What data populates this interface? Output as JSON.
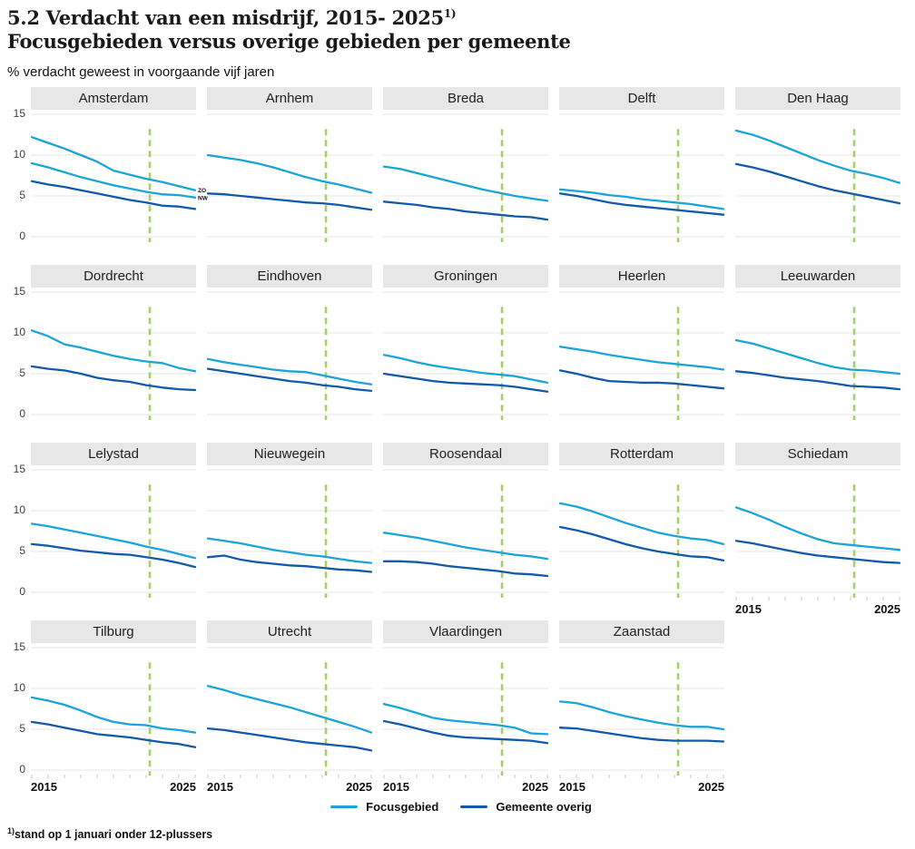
{
  "title": {
    "line1": "5.2 Verdacht van een misdrijf, 2015- 2025",
    "sup": "1)",
    "line2": "Focusgebieden versus overige gebieden per gemeente"
  },
  "subtitle": "% verdacht geweest in voorgaande vijf jaren",
  "footnote": {
    "sup": "1)",
    "text": "stand op 1 januari onder 12-plussers"
  },
  "chart_data": {
    "type": "line",
    "title": "5.2 Verdacht van een misdrijf, 2015- 2025 — Focusgebieden versus overige gebieden per gemeente",
    "ylabel": "% verdacht geweest in voorgaande vijf jaren",
    "x": [
      2015,
      2016,
      2017,
      2018,
      2019,
      2020,
      2021,
      2022,
      2023,
      2024,
      2025
    ],
    "x_tick_labels": [
      "2015",
      "2025"
    ],
    "yticks": [
      "15",
      "10",
      "5",
      "0"
    ],
    "ylim": [
      0,
      15
    ],
    "grid": true,
    "legend_position": "bottom",
    "vline": {
      "x": 2022,
      "x_fraction": 0.72,
      "style": "dashed",
      "top_value": 13.2
    },
    "colors": {
      "focus": "#1aa4d9",
      "overig": "#1359a9",
      "vline": "#a5cf6b",
      "grid": "#e4e4e4",
      "tick": "#c4c4c4",
      "header_bg": "#e7e7e7"
    },
    "legend": [
      {
        "label": "Focusgebied",
        "type": "focus"
      },
      {
        "label": "Gemeente overig",
        "type": "overig"
      }
    ],
    "panels": [
      {
        "name": "Amsterdam",
        "series": [
          {
            "label": "ZO",
            "type": "focus",
            "values": [
              12.2,
              11.5,
              10.8,
              10.0,
              9.2,
              8.1,
              7.6,
              7.1,
              6.7,
              6.2,
              5.7
            ]
          },
          {
            "label": "NW",
            "type": "focus",
            "values": [
              9.0,
              8.5,
              7.9,
              7.3,
              6.8,
              6.3,
              5.9,
              5.5,
              5.2,
              5.1,
              4.8
            ]
          },
          {
            "label": "",
            "type": "overig",
            "values": [
              6.8,
              6.4,
              6.1,
              5.7,
              5.3,
              4.9,
              4.5,
              4.2,
              3.8,
              3.7,
              3.4
            ]
          }
        ]
      },
      {
        "name": "Arnhem",
        "series": [
          {
            "label": "",
            "type": "focus",
            "values": [
              10.0,
              9.7,
              9.4,
              9.0,
              8.5,
              7.9,
              7.3,
              6.8,
              6.4,
              5.9,
              5.4
            ]
          },
          {
            "label": "",
            "type": "overig",
            "values": [
              5.3,
              5.2,
              5.0,
              4.8,
              4.6,
              4.4,
              4.2,
              4.1,
              3.9,
              3.6,
              3.3
            ]
          }
        ]
      },
      {
        "name": "Breda",
        "series": [
          {
            "label": "",
            "type": "focus",
            "values": [
              8.6,
              8.3,
              7.8,
              7.3,
              6.8,
              6.3,
              5.8,
              5.4,
              5.0,
              4.7,
              4.4
            ]
          },
          {
            "label": "",
            "type": "overig",
            "values": [
              4.3,
              4.1,
              3.9,
              3.6,
              3.4,
              3.1,
              2.9,
              2.7,
              2.5,
              2.4,
              2.1
            ]
          }
        ]
      },
      {
        "name": "Delft",
        "series": [
          {
            "label": "",
            "type": "focus",
            "values": [
              5.8,
              5.6,
              5.4,
              5.1,
              4.9,
              4.6,
              4.4,
              4.2,
              4.0,
              3.7,
              3.4
            ]
          },
          {
            "label": "",
            "type": "overig",
            "values": [
              5.3,
              5.0,
              4.6,
              4.2,
              3.9,
              3.7,
              3.5,
              3.3,
              3.1,
              2.9,
              2.7
            ]
          }
        ]
      },
      {
        "name": "Den Haag",
        "series": [
          {
            "label": "",
            "type": "focus",
            "values": [
              13.0,
              12.5,
              11.8,
              11.0,
              10.2,
              9.4,
              8.7,
              8.1,
              7.7,
              7.2,
              6.6
            ]
          },
          {
            "label": "",
            "type": "overig",
            "values": [
              8.9,
              8.5,
              8.0,
              7.4,
              6.8,
              6.2,
              5.7,
              5.3,
              4.9,
              4.5,
              4.1
            ]
          }
        ]
      },
      {
        "name": "Dordrecht",
        "series": [
          {
            "label": "",
            "type": "focus",
            "values": [
              10.3,
              9.6,
              8.6,
              8.2,
              7.7,
              7.2,
              6.8,
              6.5,
              6.3,
              5.7,
              5.3
            ]
          },
          {
            "label": "",
            "type": "overig",
            "values": [
              5.9,
              5.6,
              5.4,
              5.0,
              4.5,
              4.2,
              4.0,
              3.6,
              3.3,
              3.1,
              3.0
            ]
          }
        ]
      },
      {
        "name": "Eindhoven",
        "series": [
          {
            "label": "",
            "type": "focus",
            "values": [
              6.8,
              6.4,
              6.1,
              5.8,
              5.5,
              5.3,
              5.2,
              4.8,
              4.4,
              4.0,
              3.7
            ]
          },
          {
            "label": "",
            "type": "overig",
            "values": [
              5.6,
              5.3,
              5.0,
              4.7,
              4.4,
              4.1,
              3.9,
              3.6,
              3.4,
              3.1,
              2.9
            ]
          }
        ]
      },
      {
        "name": "Groningen",
        "series": [
          {
            "label": "",
            "type": "focus",
            "values": [
              7.3,
              6.9,
              6.4,
              6.0,
              5.7,
              5.4,
              5.1,
              4.9,
              4.7,
              4.3,
              3.9
            ]
          },
          {
            "label": "",
            "type": "overig",
            "values": [
              5.0,
              4.7,
              4.4,
              4.1,
              3.9,
              3.8,
              3.7,
              3.6,
              3.4,
              3.1,
              2.8
            ]
          }
        ]
      },
      {
        "name": "Heerlen",
        "series": [
          {
            "label": "",
            "type": "focus",
            "values": [
              8.3,
              8.0,
              7.7,
              7.3,
              7.0,
              6.7,
              6.4,
              6.2,
              6.0,
              5.8,
              5.5
            ]
          },
          {
            "label": "",
            "type": "overig",
            "values": [
              5.4,
              5.0,
              4.5,
              4.1,
              4.0,
              3.9,
              3.9,
              3.8,
              3.6,
              3.4,
              3.2
            ]
          }
        ]
      },
      {
        "name": "Leeuwarden",
        "series": [
          {
            "label": "",
            "type": "focus",
            "values": [
              9.1,
              8.7,
              8.1,
              7.5,
              6.9,
              6.3,
              5.8,
              5.5,
              5.4,
              5.2,
              5.0
            ]
          },
          {
            "label": "",
            "type": "overig",
            "values": [
              5.3,
              5.1,
              4.8,
              4.5,
              4.3,
              4.1,
              3.8,
              3.5,
              3.4,
              3.3,
              3.1
            ]
          }
        ]
      },
      {
        "name": "Lelystad",
        "series": [
          {
            "label": "",
            "type": "focus",
            "values": [
              8.4,
              8.1,
              7.7,
              7.3,
              6.9,
              6.5,
              6.1,
              5.6,
              5.2,
              4.7,
              4.2
            ]
          },
          {
            "label": "",
            "type": "overig",
            "values": [
              5.9,
              5.7,
              5.4,
              5.1,
              4.9,
              4.7,
              4.6,
              4.3,
              4.0,
              3.6,
              3.1
            ]
          }
        ]
      },
      {
        "name": "Nieuwegein",
        "series": [
          {
            "label": "",
            "type": "focus",
            "values": [
              6.6,
              6.3,
              6.0,
              5.6,
              5.2,
              4.9,
              4.6,
              4.4,
              4.1,
              3.8,
              3.6
            ]
          },
          {
            "label": "",
            "type": "overig",
            "values": [
              4.3,
              4.5,
              4.0,
              3.7,
              3.5,
              3.3,
              3.2,
              3.0,
              2.8,
              2.7,
              2.5
            ]
          }
        ]
      },
      {
        "name": "Roosendaal",
        "series": [
          {
            "label": "",
            "type": "focus",
            "values": [
              7.3,
              7.0,
              6.7,
              6.3,
              5.9,
              5.5,
              5.2,
              4.9,
              4.6,
              4.4,
              4.1
            ]
          },
          {
            "label": "",
            "type": "overig",
            "values": [
              3.8,
              3.8,
              3.7,
              3.5,
              3.2,
              3.0,
              2.8,
              2.6,
              2.3,
              2.2,
              2.0
            ]
          }
        ]
      },
      {
        "name": "Rotterdam",
        "series": [
          {
            "label": "",
            "type": "focus",
            "values": [
              10.9,
              10.5,
              9.9,
              9.2,
              8.5,
              7.9,
              7.3,
              6.9,
              6.6,
              6.4,
              5.9
            ]
          },
          {
            "label": "",
            "type": "overig",
            "values": [
              8.0,
              7.6,
              7.1,
              6.5,
              5.9,
              5.4,
              5.0,
              4.7,
              4.4,
              4.3,
              3.9
            ]
          }
        ]
      },
      {
        "name": "Schiedam",
        "show_x_axis": true,
        "series": [
          {
            "label": "",
            "type": "focus",
            "values": [
              10.4,
              9.7,
              8.9,
              8.0,
              7.2,
              6.5,
              6.0,
              5.8,
              5.6,
              5.4,
              5.2
            ]
          },
          {
            "label": "",
            "type": "overig",
            "values": [
              6.3,
              6.0,
              5.6,
              5.2,
              4.8,
              4.5,
              4.3,
              4.1,
              3.9,
              3.7,
              3.6
            ]
          }
        ]
      },
      {
        "name": "Tilburg",
        "show_x_axis": true,
        "series": [
          {
            "label": "",
            "type": "focus",
            "values": [
              8.9,
              8.5,
              8.0,
              7.3,
              6.5,
              5.9,
              5.6,
              5.5,
              5.1,
              4.9,
              4.6
            ]
          },
          {
            "label": "",
            "type": "overig",
            "values": [
              5.9,
              5.6,
              5.2,
              4.8,
              4.4,
              4.2,
              4.0,
              3.7,
              3.4,
              3.2,
              2.8
            ]
          }
        ]
      },
      {
        "name": "Utrecht",
        "show_x_axis": true,
        "series": [
          {
            "label": "",
            "type": "focus",
            "values": [
              10.3,
              9.8,
              9.2,
              8.7,
              8.2,
              7.7,
              7.1,
              6.5,
              5.9,
              5.3,
              4.6
            ]
          },
          {
            "label": "",
            "type": "overig",
            "values": [
              5.1,
              4.9,
              4.6,
              4.3,
              4.0,
              3.7,
              3.4,
              3.2,
              3.0,
              2.8,
              2.4
            ]
          }
        ]
      },
      {
        "name": "Vlaardingen",
        "show_x_axis": true,
        "series": [
          {
            "label": "",
            "type": "focus",
            "values": [
              8.1,
              7.6,
              7.0,
              6.4,
              6.1,
              5.9,
              5.7,
              5.5,
              5.2,
              4.5,
              4.4
            ]
          },
          {
            "label": "",
            "type": "overig",
            "values": [
              6.0,
              5.6,
              5.1,
              4.6,
              4.2,
              4.0,
              3.9,
              3.8,
              3.7,
              3.6,
              3.3
            ]
          }
        ]
      },
      {
        "name": "Zaanstad",
        "show_x_axis": true,
        "series": [
          {
            "label": "",
            "type": "focus",
            "values": [
              8.4,
              8.2,
              7.7,
              7.1,
              6.6,
              6.2,
              5.8,
              5.5,
              5.3,
              5.3,
              5.0
            ]
          },
          {
            "label": "",
            "type": "overig",
            "values": [
              5.2,
              5.1,
              4.8,
              4.5,
              4.2,
              3.9,
              3.7,
              3.6,
              3.6,
              3.6,
              3.5
            ]
          }
        ]
      }
    ]
  }
}
